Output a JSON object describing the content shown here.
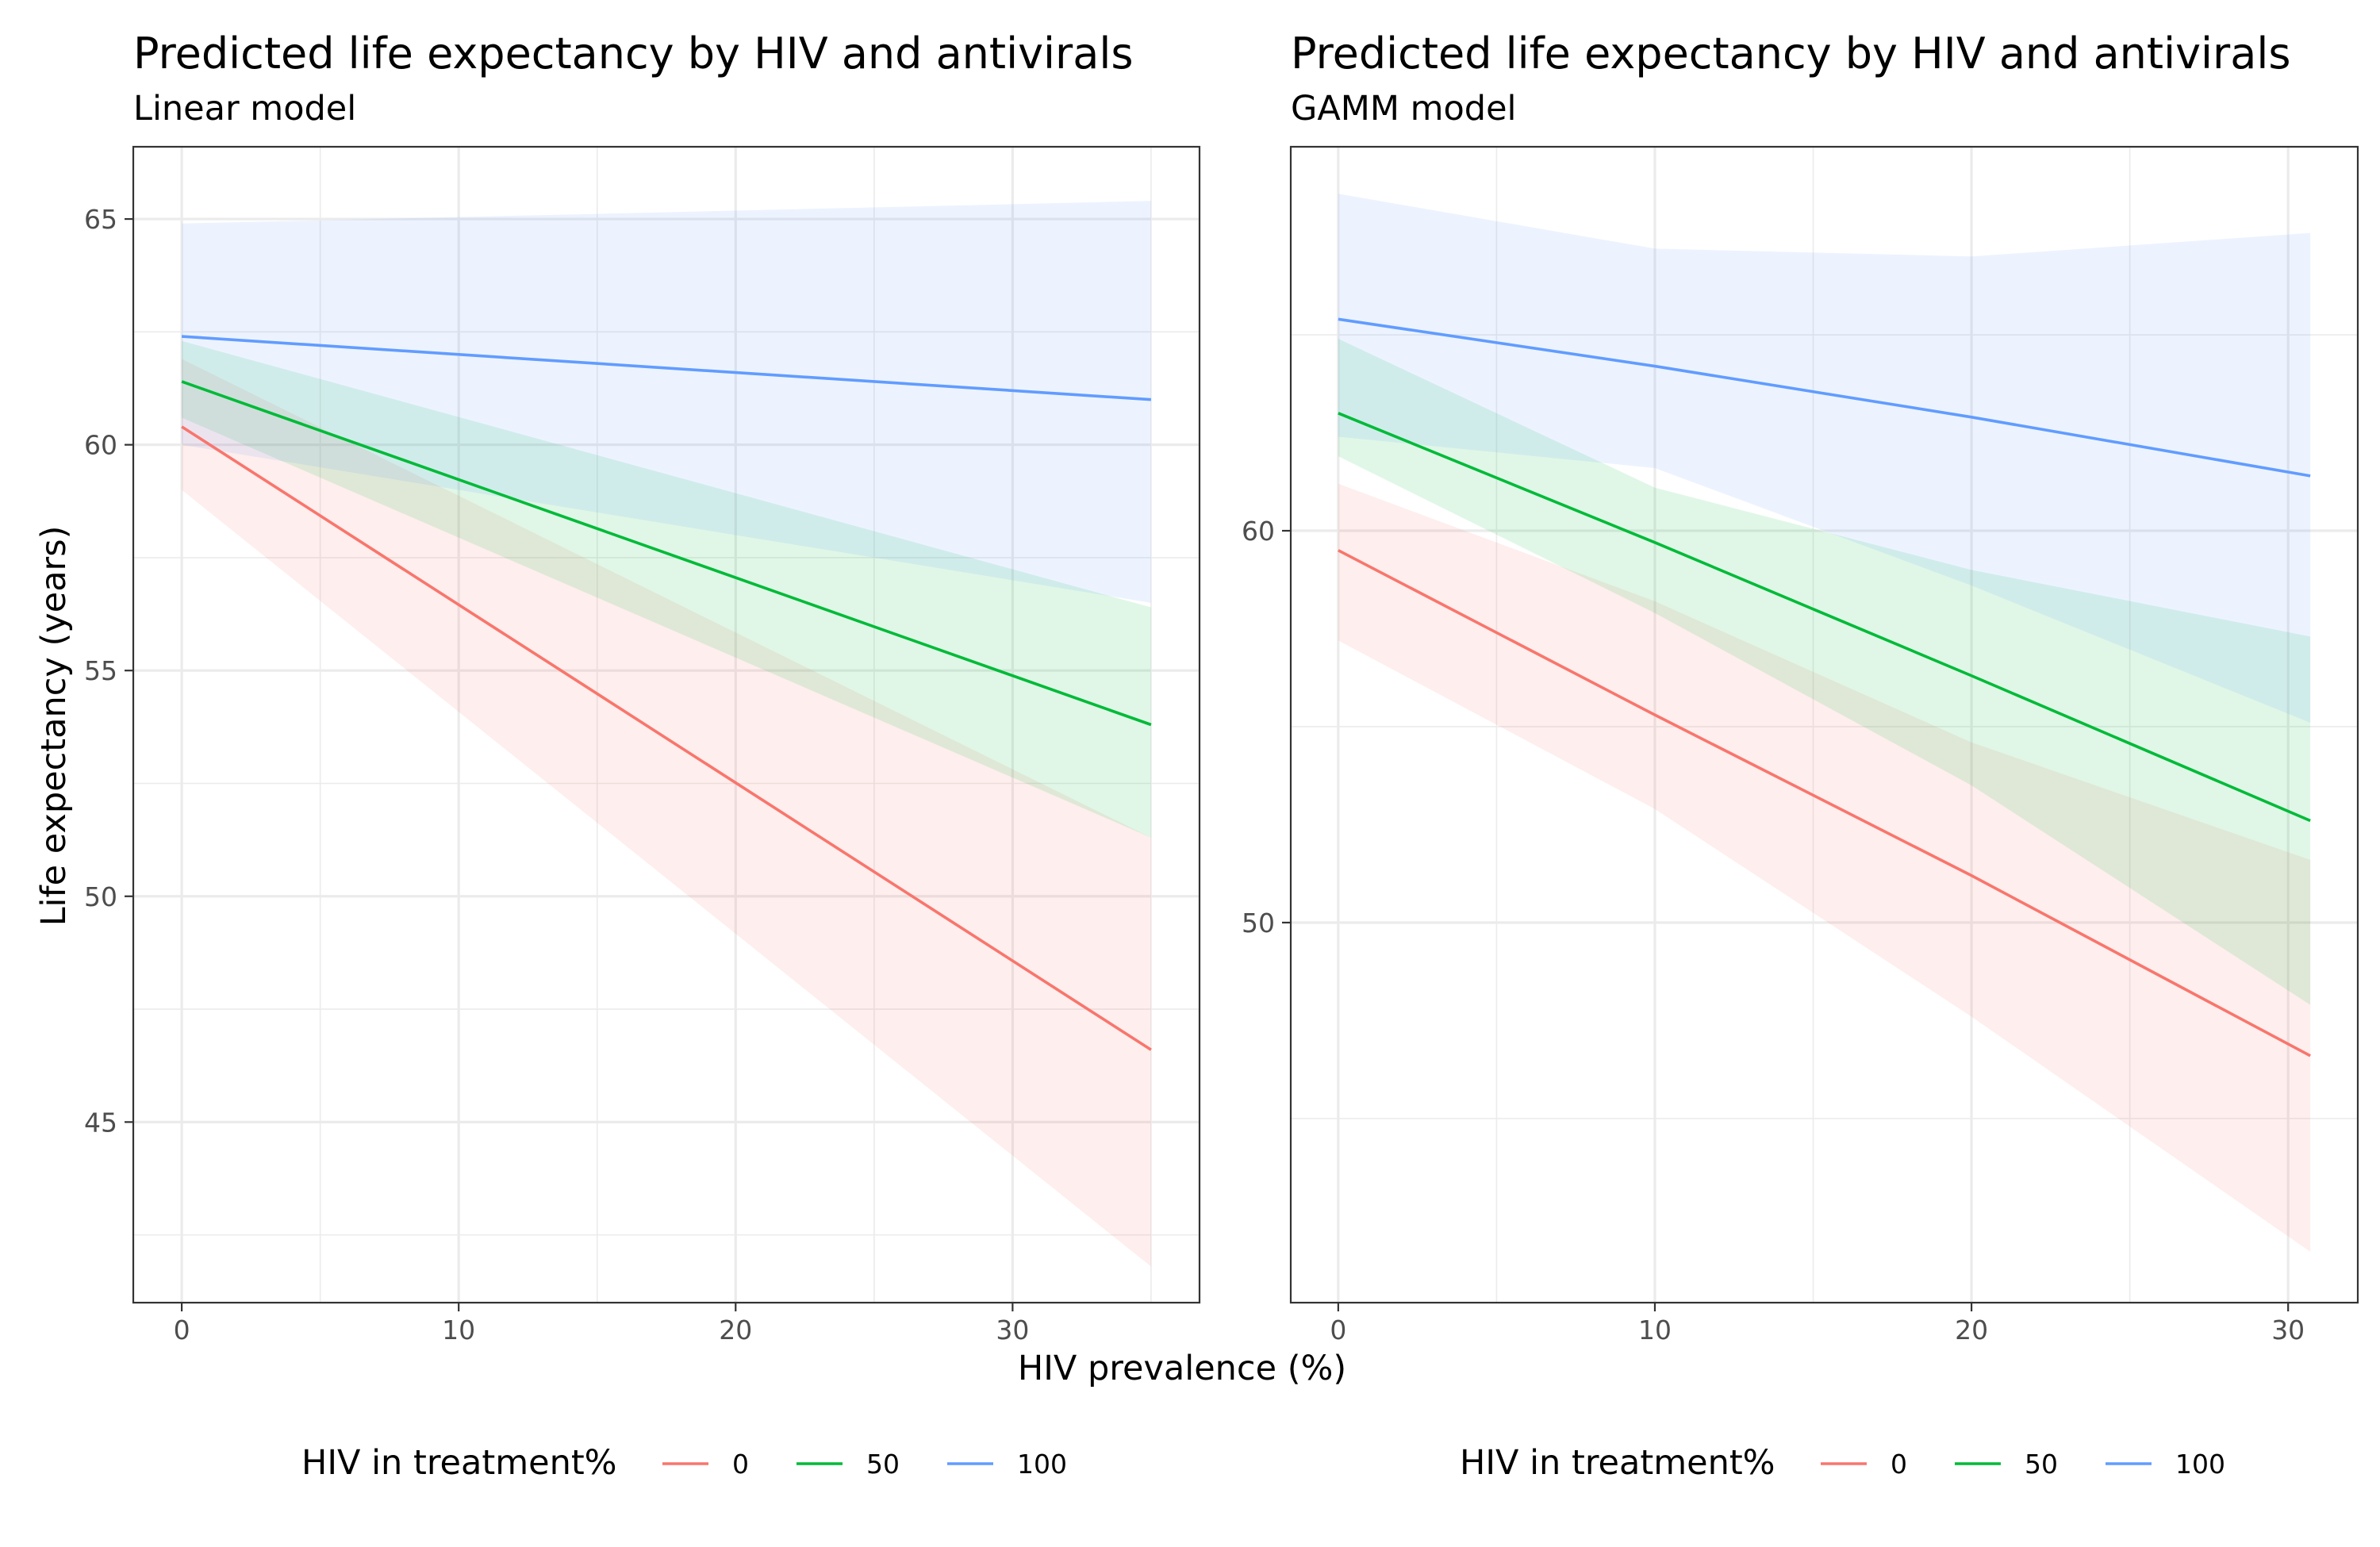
{
  "chart_data": [
    {
      "type": "line",
      "title": "Predicted life expectancy by HIV and antivirals",
      "subtitle": "Linear model",
      "xlabel": "HIV prevalence (%)",
      "ylabel": "Life expectancy (years)",
      "xlim": [
        -1.75,
        36.75
      ],
      "ylim": [
        41.0,
        66.6
      ],
      "xticks": [
        0,
        10,
        20,
        30
      ],
      "yticks": [
        45,
        50,
        55,
        60,
        65
      ],
      "grid": true,
      "legend_title": "HIV in treatment%",
      "legend_position": "bottom",
      "series": [
        {
          "name": "0",
          "color": "#F8766D",
          "x": [
            0,
            35
          ],
          "y": [
            60.4,
            46.6
          ],
          "ci_low": [
            59.0,
            41.8
          ],
          "ci_high": [
            61.9,
            51.3
          ]
        },
        {
          "name": "50",
          "color": "#00BA38",
          "x": [
            0,
            35
          ],
          "y": [
            61.4,
            53.8
          ],
          "ci_low": [
            60.6,
            51.3
          ],
          "ci_high": [
            62.3,
            56.4
          ]
        },
        {
          "name": "100",
          "color": "#619CFF",
          "x": [
            0,
            35
          ],
          "y": [
            62.4,
            61.0
          ],
          "ci_low": [
            60.0,
            56.5
          ],
          "ci_high": [
            64.9,
            65.4
          ]
        }
      ]
    },
    {
      "type": "line",
      "title": "Predicted life expectancy by HIV and antivirals",
      "subtitle": "GAMM model",
      "xlabel": "",
      "ylabel": "",
      "xlim": [
        -1.5,
        32.2
      ],
      "ylim": [
        40.3,
        69.8
      ],
      "xticks": [
        0,
        10,
        20,
        30
      ],
      "yticks": [
        50,
        60
      ],
      "grid": true,
      "legend_title": "HIV in treatment%",
      "legend_position": "bottom",
      "series": [
        {
          "name": "0",
          "color": "#F8766D",
          "x": [
            0,
            10,
            20,
            30.7
          ],
          "y": [
            59.5,
            55.3,
            51.2,
            46.6
          ],
          "ci_low": [
            57.2,
            52.9,
            47.6,
            41.6
          ],
          "ci_high": [
            61.2,
            58.2,
            54.6,
            51.6
          ]
        },
        {
          "name": "50",
          "color": "#00BA38",
          "x": [
            0,
            10,
            20,
            30.7
          ],
          "y": [
            63.0,
            59.7,
            56.3,
            52.6
          ],
          "ci_low": [
            61.9,
            57.9,
            53.5,
            47.9
          ],
          "ci_high": [
            64.9,
            61.1,
            59.0,
            57.3
          ]
        },
        {
          "name": "100",
          "color": "#619CFF",
          "x": [
            0,
            10,
            20,
            30.7
          ],
          "y": [
            65.4,
            64.2,
            62.9,
            61.4
          ],
          "ci_low": [
            62.4,
            61.6,
            58.6,
            55.1
          ],
          "ci_high": [
            68.6,
            67.2,
            67.0,
            67.6
          ]
        }
      ]
    }
  ]
}
